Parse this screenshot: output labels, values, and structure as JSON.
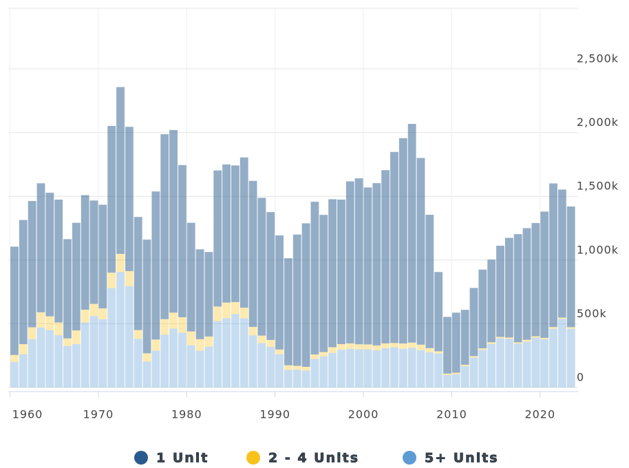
{
  "chart_data": {
    "type": "stacked-bar",
    "x": [
      1960,
      1961,
      1962,
      1963,
      1964,
      1965,
      1966,
      1967,
      1968,
      1969,
      1970,
      1971,
      1972,
      1973,
      1974,
      1975,
      1976,
      1977,
      1978,
      1979,
      1980,
      1981,
      1982,
      1983,
      1984,
      1985,
      1986,
      1987,
      1988,
      1989,
      1990,
      1991,
      1992,
      1993,
      1994,
      1995,
      1996,
      1997,
      1998,
      1999,
      2000,
      2001,
      2002,
      2003,
      2004,
      2005,
      2006,
      2007,
      2008,
      2009,
      2010,
      2011,
      2012,
      2013,
      2014,
      2015,
      2016,
      2017,
      2018,
      2019,
      2020,
      2021,
      2022,
      2023
    ],
    "series": [
      {
        "name": "5+ Units",
        "color": "#5d9bd5",
        "values": [
          200,
          260,
          380,
          470,
          450,
          410,
          325,
          340,
          510,
          560,
          535,
          780,
          906,
          795,
          382,
          204,
          289,
          414,
          462,
          429,
          331,
          288,
          320,
          522,
          544,
          576,
          542,
          409,
          348,
          318,
          260,
          138,
          139,
          133,
          224,
          244,
          271,
          296,
          303,
          299,
          299,
          293,
          308,
          315,
          303,
          311,
          293,
          277,
          266,
          97,
          104,
          167,
          234,
          294,
          341,
          386,
          381,
          343,
          360,
          391,
          378,
          461,
          538,
          460
        ]
      },
      {
        "name": "2 - 4 Units",
        "color": "#f8c21c",
        "values": [
          55,
          80,
          92,
          120,
          108,
          100,
          60,
          108,
          100,
          96,
          86,
          121,
          142,
          118,
          68,
          64,
          87,
          122,
          125,
          122,
          109,
          91,
          80,
          113,
          122,
          94,
          84,
          66,
          59,
          55,
          38,
          36,
          31,
          29,
          35,
          34,
          45,
          44,
          43,
          40,
          39,
          37,
          38,
          34,
          42,
          41,
          43,
          32,
          18,
          12,
          12,
          11,
          12,
          13,
          14,
          11,
          11,
          11,
          14,
          11,
          11,
          13,
          10,
          13
        ]
      },
      {
        "name": "1 Unit",
        "color": "#2a5b8e",
        "values": [
          850,
          974,
          991,
          1012,
          970,
          964,
          779,
          844,
          899,
          811,
          813,
          1151,
          1309,
          1132,
          888,
          892,
          1162,
          1451,
          1433,
          1194,
          852,
          705,
          663,
          1068,
          1084,
          1072,
          1179,
          1146,
          1081,
          1003,
          895,
          840,
          1030,
          1126,
          1198,
          1076,
          1161,
          1134,
          1271,
          1302,
          1231,
          1273,
          1359,
          1499,
          1611,
          1716,
          1465,
          1046,
          622,
          445,
          471,
          431,
          535,
          618,
          648,
          715,
          782,
          849,
          876,
          888,
          991,
          1127,
          1005,
          947
        ]
      }
    ],
    "xlim": [
      1959.8,
      2024.3
    ],
    "xticks": [
      1960,
      1970,
      1980,
      1990,
      2000,
      2010,
      2020
    ],
    "ylim": [
      0,
      3000
    ],
    "yticks": [
      0,
      {
        "value": 500,
        "label": "500k"
      },
      {
        "value": 1000,
        "label": "1,000k"
      },
      {
        "value": 1500,
        "label": "1,500k"
      },
      {
        "value": 2000,
        "label": "2,000k"
      },
      {
        "value": 2500,
        "label": "2,500k"
      }
    ],
    "grid": true,
    "legend": "bottom"
  }
}
